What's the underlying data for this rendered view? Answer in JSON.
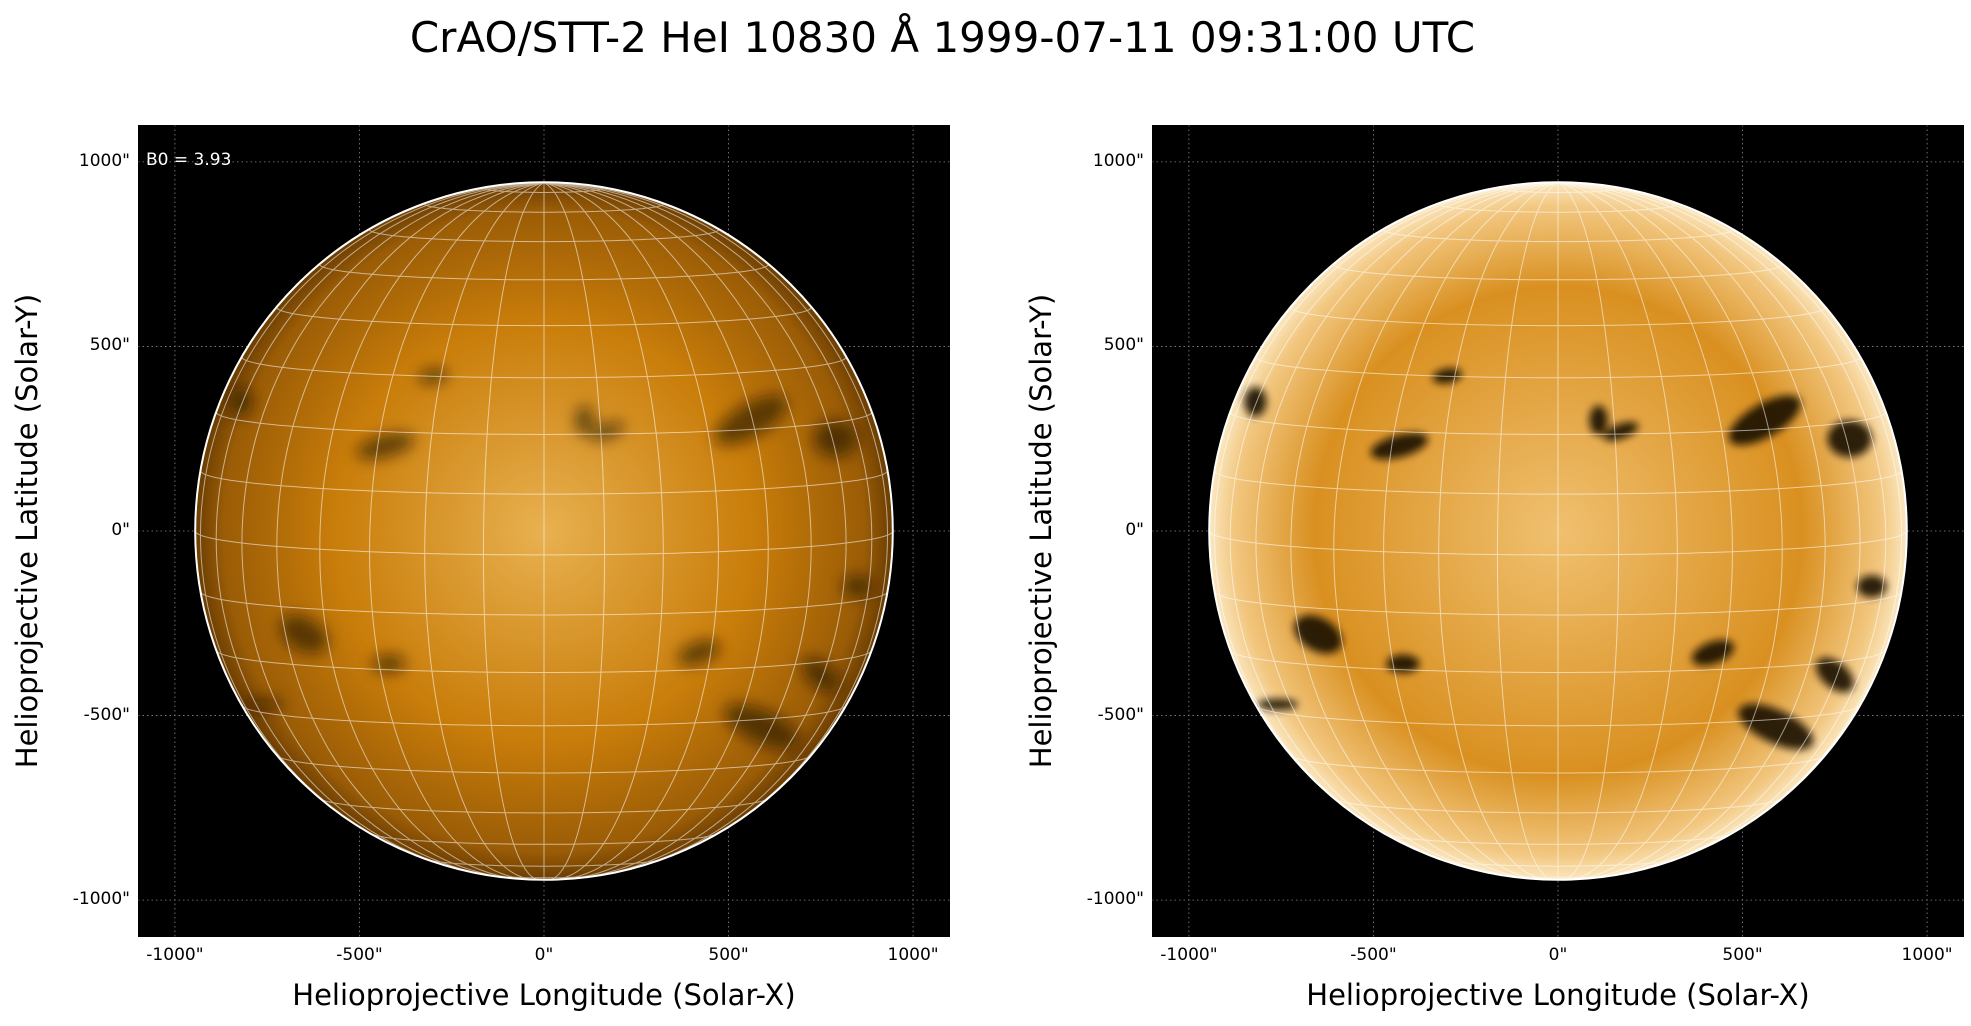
{
  "title": "CrAO/STT-2 HeI 10830 Å 1999-07-11 09:31:00 UTC",
  "colors": {
    "background": "#000000",
    "disk_base": "#c97d0a",
    "disk_center": "#e8b150",
    "limb": "#ffffff",
    "grid": "#ffffff",
    "dark_feature": "#1a0d00"
  },
  "axes": {
    "xlabel": "Helioprojective Longitude (Solar-X)",
    "ylabel": "Helioprojective Latitude (Solar-Y)",
    "xticks": [
      "-1000\"",
      "-500\"",
      "0\"",
      "500\"",
      "1000\""
    ],
    "yticks": [
      "1000\"",
      "500\"",
      "0\"",
      "-500\"",
      "-1000\""
    ],
    "tick_values": [
      -1000,
      -500,
      0,
      500,
      1000
    ],
    "xlim": [
      -1100,
      1100
    ],
    "ylim": [
      -1100,
      1100
    ]
  },
  "solar_radius_arcsec": 945,
  "b0_degrees": 3.93,
  "panels": [
    {
      "id": "left",
      "annotation": "B0 = 3.93",
      "style": "original"
    },
    {
      "id": "right",
      "annotation": "",
      "style": "enhanced"
    }
  ],
  "features": [
    {
      "x": -430,
      "y": 230,
      "rx": 80,
      "ry": 30,
      "rot": 15
    },
    {
      "x": 170,
      "y": 270,
      "rx": 50,
      "ry": 20,
      "rot": 20
    },
    {
      "x": 560,
      "y": 300,
      "rx": 110,
      "ry": 45,
      "rot": 30
    },
    {
      "x": 790,
      "y": 250,
      "rx": 60,
      "ry": 50,
      "rot": 0
    },
    {
      "x": 110,
      "y": 300,
      "rx": 25,
      "ry": 40,
      "rot": 0
    },
    {
      "x": -650,
      "y": -280,
      "rx": 70,
      "ry": 45,
      "rot": -30
    },
    {
      "x": -420,
      "y": -360,
      "rx": 45,
      "ry": 25,
      "rot": 0
    },
    {
      "x": 420,
      "y": -330,
      "rx": 60,
      "ry": 30,
      "rot": 20
    },
    {
      "x": 590,
      "y": -530,
      "rx": 110,
      "ry": 45,
      "rot": -25
    },
    {
      "x": 750,
      "y": -390,
      "rx": 60,
      "ry": 35,
      "rot": -40
    },
    {
      "x": -760,
      "y": -470,
      "rx": 55,
      "ry": 15,
      "rot": 0
    },
    {
      "x": -300,
      "y": 420,
      "rx": 40,
      "ry": 20,
      "rot": 10
    },
    {
      "x": 850,
      "y": -150,
      "rx": 40,
      "ry": 30,
      "rot": 0
    },
    {
      "x": -820,
      "y": 350,
      "rx": 30,
      "ry": 40,
      "rot": 0
    }
  ]
}
